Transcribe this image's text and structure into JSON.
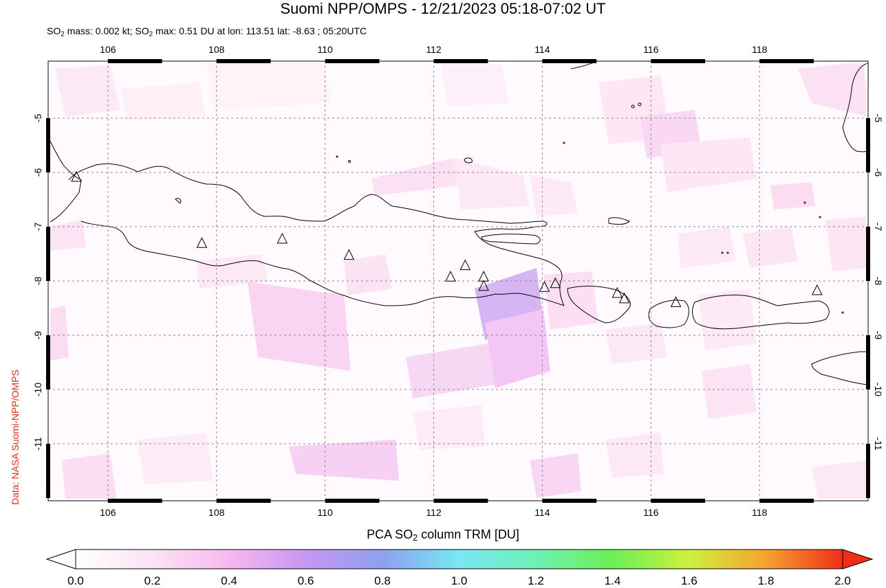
{
  "title": "Suomi NPP/OMPS - 12/21/2023 05:18-07:02 UT",
  "subtitle": {
    "mass_prefix": "SO",
    "mass_sub": "2",
    "mass_value": " mass: 0.002 kt; ",
    "max_prefix": "SO",
    "max_sub": "2",
    "max_value": " max: 0.51 DU at lon: 113.51 lat: -8.63 ; 05:20UTC"
  },
  "credit": "Data: NASA Suomi-NPP/OMPS",
  "colorbar": {
    "title_prefix": "PCA SO",
    "title_sub": "2",
    "title_suffix": " column TRM [DU]",
    "ticks": [
      "0.0",
      "0.2",
      "0.4",
      "0.6",
      "0.8",
      "1.0",
      "1.2",
      "1.4",
      "1.6",
      "1.8",
      "2.0"
    ],
    "range": [
      0.0,
      2.0
    ]
  },
  "map": {
    "lon_range": [
      104.9,
      120.0
    ],
    "lat_range": [
      -12.05,
      -3.95
    ],
    "lon_ticks": [
      "106",
      "108",
      "110",
      "112",
      "114",
      "116",
      "118"
    ],
    "lat_ticks": [
      "-5",
      "-6",
      "-7",
      "-8",
      "-9",
      "-10",
      "-11"
    ],
    "volcanoes": [
      {
        "lon": 105.42,
        "lat": -6.1
      },
      {
        "lon": 107.73,
        "lat": -7.32
      },
      {
        "lon": 109.21,
        "lat": -7.24
      },
      {
        "lon": 110.44,
        "lat": -7.54
      },
      {
        "lon": 112.31,
        "lat": -7.94
      },
      {
        "lon": 112.58,
        "lat": -7.73
      },
      {
        "lon": 112.92,
        "lat": -7.94
      },
      {
        "lon": 112.92,
        "lat": -8.11
      },
      {
        "lon": 114.04,
        "lat": -8.13
      },
      {
        "lon": 114.24,
        "lat": -8.06
      },
      {
        "lon": 115.38,
        "lat": -8.24
      },
      {
        "lon": 115.51,
        "lat": -8.34
      },
      {
        "lon": 116.46,
        "lat": -8.41
      },
      {
        "lon": 119.06,
        "lat": -8.19
      }
    ]
  }
}
